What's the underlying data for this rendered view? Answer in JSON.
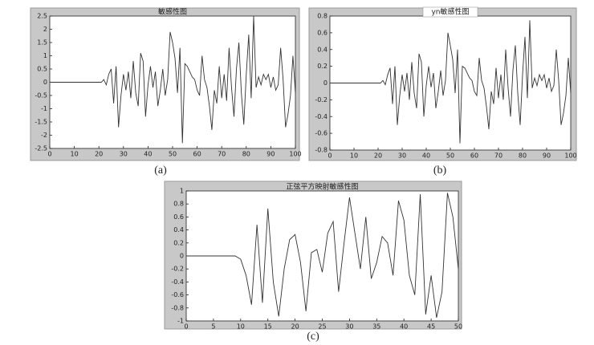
{
  "chart_data": [
    {
      "type": "line",
      "title": "敏感性图",
      "caption": "(a)",
      "color": "#333333",
      "title_box": false,
      "x": [
        0,
        1,
        2,
        3,
        4,
        5,
        6,
        7,
        8,
        9,
        10,
        11,
        12,
        13,
        14,
        15,
        16,
        17,
        18,
        19,
        20,
        21,
        22,
        23,
        24,
        25,
        26,
        27,
        28,
        29,
        30,
        31,
        32,
        33,
        34,
        35,
        36,
        37,
        38,
        39,
        40,
        41,
        42,
        43,
        44,
        45,
        46,
        47,
        48,
        49,
        50,
        51,
        52,
        53,
        54,
        55,
        56,
        57,
        58,
        59,
        60,
        61,
        62,
        63,
        64,
        65,
        66,
        67,
        68,
        69,
        70,
        71,
        72,
        73,
        74,
        75,
        76,
        77,
        78,
        79,
        80,
        81,
        82,
        83,
        84,
        85,
        86,
        87,
        88,
        89,
        90,
        91,
        92,
        93,
        94,
        95,
        96,
        97,
        98,
        99,
        100
      ],
      "values": [
        0,
        0,
        0,
        0,
        0,
        0,
        0,
        0,
        0,
        0,
        0,
        0,
        0,
        0,
        0,
        0,
        0,
        0,
        0,
        0,
        0,
        0,
        0.1,
        -0.1,
        0.3,
        0.5,
        -0.8,
        0.6,
        -1.7,
        -0.5,
        0.3,
        -0.3,
        0.4,
        -0.6,
        0.8,
        -0.4,
        -0.9,
        1.1,
        0.8,
        -1.3,
        -0.1,
        0.6,
        -0.2,
        0.4,
        -0.9,
        -0.3,
        0.5,
        -0.5,
        0.1,
        1.9,
        1.5,
        0.9,
        -0.4,
        1.3,
        -2.3,
        0.7,
        0.6,
        0.4,
        0.2,
        0.1,
        -0.3,
        -0.5,
        1.0,
        0.1,
        -0.2,
        -0.9,
        -1.8,
        -0.3,
        -0.8,
        0.6,
        -0.6,
        0.3,
        -0.7,
        1.3,
        -0.2,
        -1.3,
        0.5,
        1.5,
        -0.4,
        -1.6,
        0.3,
        1.8,
        -0.6,
        2.5,
        -0.2,
        0.2,
        -0.1,
        0.3,
        0.1,
        0.3,
        -0.2,
        0.2,
        -0.3,
        -0.1,
        1.3,
        0.1,
        -1.7,
        -1.2,
        -0.5,
        1.0,
        -0.4
      ],
      "xlim": [
        0,
        100
      ],
      "xticks": [
        0,
        10,
        20,
        30,
        40,
        50,
        60,
        70,
        80,
        90,
        100
      ],
      "ylim": [
        -2.5,
        2.5
      ],
      "yticks": [
        -2.5,
        -2,
        -1.5,
        -1,
        -0.5,
        0,
        0.5,
        1,
        1.5,
        2,
        2.5
      ]
    },
    {
      "type": "line",
      "title": "yn敏感性图",
      "caption": "(b)",
      "color": "#333333",
      "title_box": true,
      "x": [
        0,
        1,
        2,
        3,
        4,
        5,
        6,
        7,
        8,
        9,
        10,
        11,
        12,
        13,
        14,
        15,
        16,
        17,
        18,
        19,
        20,
        21,
        22,
        23,
        24,
        25,
        26,
        27,
        28,
        29,
        30,
        31,
        32,
        33,
        34,
        35,
        36,
        37,
        38,
        39,
        40,
        41,
        42,
        43,
        44,
        45,
        46,
        47,
        48,
        49,
        50,
        51,
        52,
        53,
        54,
        55,
        56,
        57,
        58,
        59,
        60,
        61,
        62,
        63,
        64,
        65,
        66,
        67,
        68,
        69,
        70,
        71,
        72,
        73,
        74,
        75,
        76,
        77,
        78,
        79,
        80,
        81,
        82,
        83,
        84,
        85,
        86,
        87,
        88,
        89,
        90,
        91,
        92,
        93,
        94,
        95,
        96,
        97,
        98,
        99,
        100
      ],
      "values": [
        0,
        0,
        0,
        0,
        0,
        0,
        0,
        0,
        0,
        0,
        0,
        0,
        0,
        0,
        0,
        0,
        0,
        0,
        0,
        0,
        0,
        0,
        0.03,
        -0.02,
        0.1,
        0.18,
        -0.25,
        0.2,
        -0.5,
        -0.15,
        0.1,
        -0.1,
        0.12,
        -0.2,
        0.25,
        -0.12,
        -0.3,
        0.35,
        0.25,
        -0.4,
        -0.03,
        0.2,
        -0.05,
        0.12,
        -0.3,
        -0.1,
        0.15,
        -0.15,
        0.03,
        0.6,
        0.45,
        0.28,
        -0.12,
        0.4,
        -0.72,
        0.2,
        0.18,
        0.12,
        0.06,
        0.03,
        -0.1,
        -0.15,
        0.3,
        0.03,
        -0.06,
        -0.28,
        -0.55,
        -0.1,
        -0.25,
        0.18,
        -0.18,
        0.1,
        -0.2,
        0.4,
        -0.06,
        -0.4,
        0.15,
        0.45,
        -0.12,
        -0.5,
        0.1,
        0.55,
        -0.18,
        0.75,
        -0.06,
        0.06,
        -0.03,
        0.1,
        0.03,
        0.1,
        -0.06,
        0.06,
        -0.1,
        -0.03,
        0.4,
        0.03,
        -0.5,
        -0.36,
        -0.15,
        0.3,
        -0.12
      ],
      "xlim": [
        0,
        100
      ],
      "xticks": [
        0,
        10,
        20,
        30,
        40,
        50,
        60,
        70,
        80,
        90,
        100
      ],
      "ylim": [
        -0.8,
        0.8
      ],
      "yticks": [
        -0.8,
        -0.6,
        -0.4,
        -0.2,
        0,
        0.2,
        0.4,
        0.6,
        0.8
      ]
    },
    {
      "type": "line",
      "title": "正弦平方映射敏感性图",
      "caption": "(c)",
      "color": "#333333",
      "title_box": false,
      "x": [
        0,
        1,
        2,
        3,
        4,
        5,
        6,
        7,
        8,
        9,
        10,
        11,
        12,
        13,
        14,
        15,
        16,
        17,
        18,
        19,
        20,
        21,
        22,
        23,
        24,
        25,
        26,
        27,
        28,
        29,
        30,
        31,
        32,
        33,
        34,
        35,
        36,
        37,
        38,
        39,
        40,
        41,
        42,
        43,
        44,
        45,
        46,
        47,
        48,
        49,
        50
      ],
      "values": [
        0,
        0,
        0,
        0,
        0,
        0,
        0,
        0,
        0,
        0,
        -0.05,
        -0.3,
        -0.75,
        0.48,
        -0.72,
        0.73,
        -0.4,
        -0.93,
        -0.2,
        0.25,
        0.33,
        -0.1,
        -0.85,
        0.05,
        0.1,
        -0.25,
        0.35,
        0.53,
        -0.55,
        0.2,
        0.9,
        0.35,
        -0.2,
        0.6,
        -0.35,
        -0.1,
        0.3,
        0.2,
        -0.3,
        0.85,
        0.55,
        -0.3,
        -0.6,
        0.95,
        -0.9,
        -0.3,
        -0.95,
        -0.55,
        0.97,
        0.6,
        -0.2
      ],
      "xlim": [
        0,
        50
      ],
      "xticks": [
        0,
        5,
        10,
        15,
        20,
        25,
        30,
        35,
        40,
        45,
        50
      ],
      "ylim": [
        -1,
        1
      ],
      "yticks": [
        -1,
        -0.8,
        -0.6,
        -0.4,
        -0.2,
        0,
        0.2,
        0.4,
        0.6,
        0.8,
        1
      ]
    }
  ]
}
